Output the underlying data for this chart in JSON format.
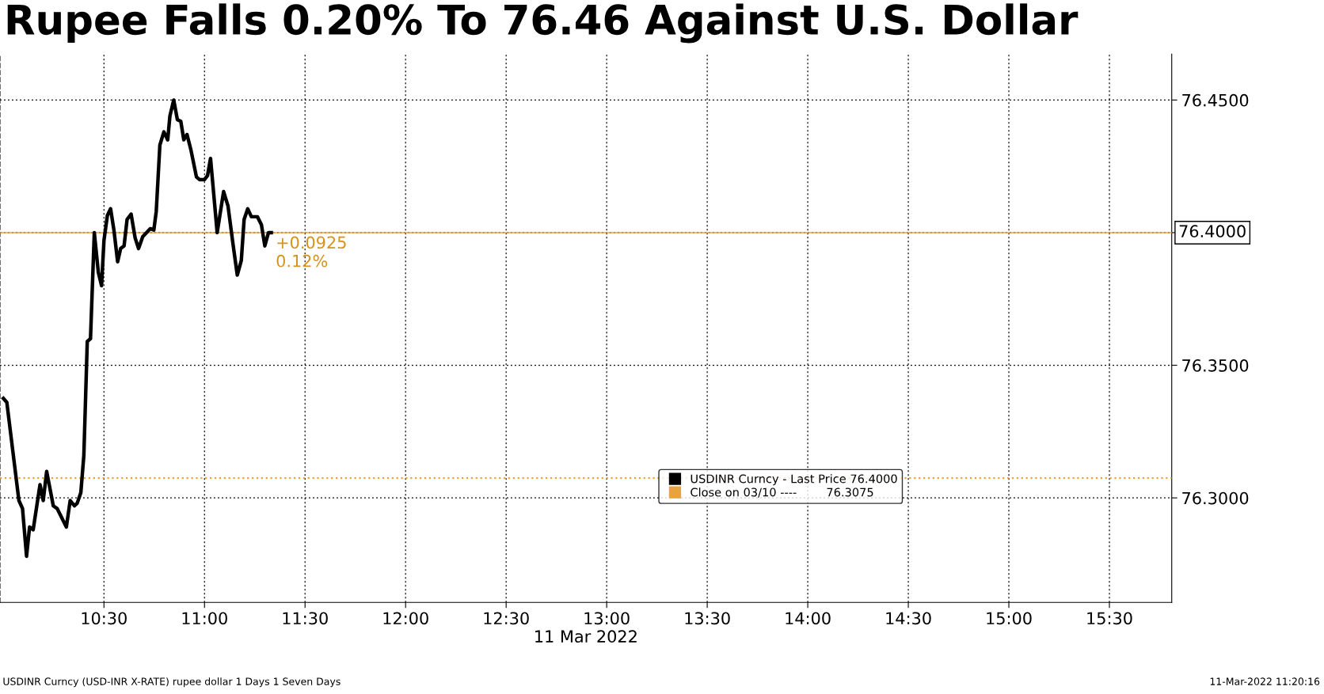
{
  "chart_data": {
    "type": "line",
    "title": "Rupee Falls 0.20% To 76.46 Against U.S. Dollar",
    "xlabel": "11 Mar 2022",
    "x": [
      10.0,
      10.017,
      10.077,
      10.095,
      10.115,
      10.13,
      10.148,
      10.182,
      10.198,
      10.215,
      10.248,
      10.267,
      10.313,
      10.332,
      10.353,
      10.367,
      10.385,
      10.4,
      10.417,
      10.433,
      10.452,
      10.472,
      10.488,
      10.5,
      10.517,
      10.533,
      10.55,
      10.568,
      10.583,
      10.6,
      10.615,
      10.635,
      10.655,
      10.672,
      10.693,
      10.73,
      10.748,
      10.76,
      10.778,
      10.798,
      10.817,
      10.828,
      10.847,
      10.865,
      10.882,
      10.897,
      10.913,
      10.933,
      10.96,
      10.975,
      11.0,
      11.015,
      11.03,
      11.063,
      11.095,
      11.117,
      11.142,
      11.163,
      11.183,
      11.197,
      11.215,
      11.233,
      11.263,
      11.283,
      11.3,
      11.318,
      11.332
    ],
    "series": [
      {
        "name": "USDINR Curncy - Last Price 76.4000",
        "color": "#000000",
        "values": [
          76.3375,
          76.336,
          76.299,
          76.296,
          76.278,
          76.289,
          76.288,
          76.305,
          76.299,
          76.31,
          76.297,
          76.296,
          76.289,
          76.299,
          76.297,
          76.298,
          76.302,
          76.316,
          76.359,
          76.36,
          76.4,
          76.385,
          76.38,
          76.397,
          76.4065,
          76.409,
          76.4007,
          76.389,
          76.394,
          76.395,
          76.405,
          76.407,
          76.398,
          76.394,
          76.3985,
          76.4015,
          76.401,
          76.408,
          76.433,
          76.438,
          76.435,
          76.444,
          76.45,
          76.4426,
          76.442,
          76.435,
          76.437,
          76.431,
          76.421,
          76.42,
          76.42,
          76.4215,
          76.428,
          76.4,
          76.4155,
          76.41,
          76.3955,
          76.384,
          76.3895,
          76.405,
          76.409,
          76.406,
          76.406,
          76.403,
          76.395,
          76.4,
          76.4
        ]
      }
    ],
    "xlim": [
      9.983,
      15.81
    ],
    "xticks": [
      {
        "value": 10.5,
        "label": "10:30"
      },
      {
        "value": 11.0,
        "label": "11:00"
      },
      {
        "value": 11.5,
        "label": "11:30"
      },
      {
        "value": 12.0,
        "label": "12:00"
      },
      {
        "value": 12.5,
        "label": "12:30"
      },
      {
        "value": 13.0,
        "label": "13:00"
      },
      {
        "value": 13.5,
        "label": "13:30"
      },
      {
        "value": 14.0,
        "label": "14:00"
      },
      {
        "value": 14.5,
        "label": "14:30"
      },
      {
        "value": 15.0,
        "label": "15:00"
      },
      {
        "value": 15.5,
        "label": "15:30"
      }
    ],
    "ylim": [
      76.2606,
      76.4673
    ],
    "yticks": [
      {
        "value": 76.3,
        "label": "76.3000"
      },
      {
        "value": 76.35,
        "label": "76.3500"
      },
      {
        "value": 76.4,
        "label": null
      },
      {
        "value": 76.45,
        "label": "76.4500"
      }
    ],
    "ref_lines": [
      {
        "axis": "y",
        "value": 76.4,
        "label": "76.4000",
        "color": "#e8a33c",
        "line_style": "solid"
      },
      {
        "axis": "y",
        "value": 76.3075,
        "label": "Close on 03/10 ----        76.3075",
        "color": "#e8a33c",
        "line_style": "dotted"
      }
    ],
    "annotations": [
      {
        "text": "+0.0925\n0.12%",
        "x": 11.332,
        "y": 76.4
      },
      "USDINR Curncy (USD-INR X-RATE) rupee dollar 1 Days 1 Seven Days",
      "11-Mar-2022 11:20:16"
    ],
    "grid": true,
    "legend": "bottom right",
    "marker": "none",
    "line_style": "solid"
  }
}
